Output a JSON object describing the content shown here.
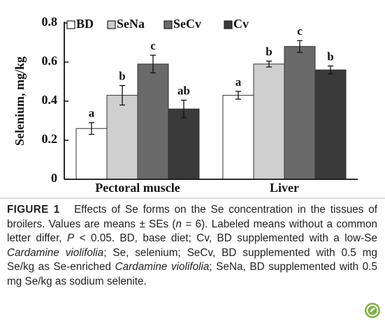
{
  "chart_data": {
    "type": "bar",
    "ylabel": "Selenium, mg/kg",
    "categories": [
      "Pectoral muscle",
      "Liver"
    ],
    "series": [
      {
        "name": "BD",
        "color": "#ffffff",
        "values": [
          0.26,
          0.43
        ],
        "errors": [
          0.03,
          0.02
        ],
        "letters": [
          "a",
          "a"
        ]
      },
      {
        "name": "SeNa",
        "color": "#cfcfcf",
        "values": [
          0.43,
          0.59
        ],
        "errors": [
          0.05,
          0.015
        ],
        "letters": [
          "b",
          "b"
        ]
      },
      {
        "name": "SeCv",
        "color": "#6a6a6a",
        "values": [
          0.59,
          0.68
        ],
        "errors": [
          0.045,
          0.03
        ],
        "letters": [
          "c",
          "c"
        ]
      },
      {
        "name": "Cv",
        "color": "#3a3a3a",
        "values": [
          0.36,
          0.56
        ],
        "errors": [
          0.045,
          0.02
        ],
        "letters": [
          "ab",
          "b"
        ]
      }
    ],
    "ylim": [
      0,
      0.8
    ],
    "yticks": [
      0,
      0.2,
      0.4,
      0.6,
      0.8
    ],
    "legend": "top"
  },
  "caption": {
    "label": "FIGURE 1",
    "parts": [
      "Effects of Se forms on the Se concentration in the tissues of broilers. Values are means ± SEs (",
      "n",
      " = 6). Labeled means without a common letter differ, ",
      "P",
      " < 0.05. BD, base diet; Cv, BD supplemented with a low-Se ",
      "Cardamine violifolia",
      "; Se, selenium; SeCv, BD supplemented with 0.5 mg Se/kg as Se-enriched ",
      "Cardamine violifolia",
      "; SeNa, BD supplemented with 0.5 mg Se/kg as sodium selenite."
    ]
  }
}
